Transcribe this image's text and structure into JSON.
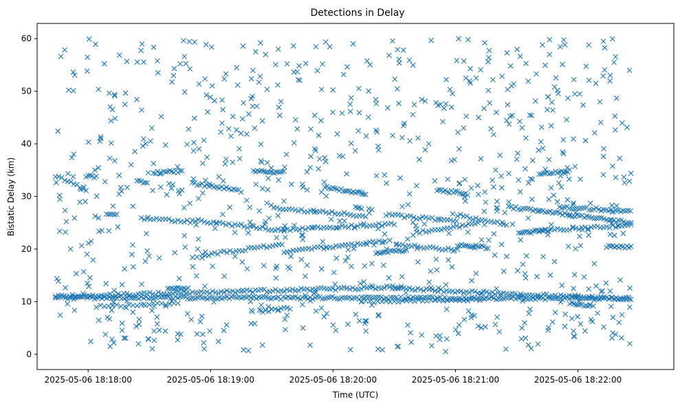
{
  "chart_data": {
    "type": "scatter",
    "title": "Detections in Delay",
    "xlabel": "Time (UTC)",
    "ylabel": "Bistatic Delay (km)",
    "x_is_time": true,
    "x_start": "2025-05-06 18:17:44",
    "xlim": [
      "2025-05-06 18:17:35",
      "2025-05-06 18:22:47"
    ],
    "ylim": [
      -2.9,
      62.9
    ],
    "x_ticks": [
      "2025-05-06 18:18:00",
      "2025-05-06 18:19:00",
      "2025-05-06 18:20:00",
      "2025-05-06 18:21:00",
      "2025-05-06 18:22:00"
    ],
    "y_ticks": [
      0,
      10,
      20,
      30,
      40,
      50,
      60
    ],
    "marker": "x",
    "color": "#1f77b4",
    "grid": false,
    "series": [
      {
        "name": "",
        "marker": "x",
        "color": "#1f77b4",
        "tracks": [
          {
            "t_start": 0,
            "t_end": 282,
            "y_start": 10.8,
            "y_end": 10.6,
            "step": 1.2
          },
          {
            "t_start": 0,
            "t_end": 170,
            "y_start": 11.0,
            "y_end": 12.8,
            "step": 1.4
          },
          {
            "t_start": 165,
            "t_end": 282,
            "y_start": 12.5,
            "y_end": 10.5,
            "step": 1.4
          },
          {
            "t_start": 55,
            "t_end": 65,
            "y_start": 12.6,
            "y_end": 12.4,
            "step": 1.0
          },
          {
            "t_start": 20,
            "t_end": 60,
            "y_start": 9.1,
            "y_end": 9.7,
            "step": 2.0
          },
          {
            "t_start": 100,
            "t_end": 115,
            "y_start": 8.2,
            "y_end": 8.8,
            "step": 1.5
          },
          {
            "t_start": 150,
            "t_end": 210,
            "y_start": 10.0,
            "y_end": 10.4,
            "step": 2.0
          },
          {
            "t_start": 0,
            "t_end": 15,
            "y_start": 33.9,
            "y_end": 31.2,
            "step": 1.5
          },
          {
            "t_start": 15,
            "t_end": 20,
            "y_start": 33.8,
            "y_end": 33.7,
            "step": 1.0
          },
          {
            "t_start": 25,
            "t_end": 30,
            "y_start": 26.8,
            "y_end": 26.5,
            "step": 1.0
          },
          {
            "t_start": 40,
            "t_end": 45,
            "y_start": 33.2,
            "y_end": 32.5,
            "step": 1.0
          },
          {
            "t_start": 48,
            "t_end": 62,
            "y_start": 34.5,
            "y_end": 34.8,
            "step": 1.0
          },
          {
            "t_start": 42,
            "t_end": 67,
            "y_start": 25.8,
            "y_end": 25.2,
            "step": 1.5
          },
          {
            "t_start": 67,
            "t_end": 92,
            "y_start": 32.5,
            "y_end": 31.0,
            "step": 1.2
          },
          {
            "t_start": 67,
            "t_end": 112,
            "y_start": 25.5,
            "y_end": 23.5,
            "step": 1.5
          },
          {
            "t_start": 72,
            "t_end": 112,
            "y_start": 18.8,
            "y_end": 21.0,
            "step": 1.5
          },
          {
            "t_start": 97,
            "t_end": 112,
            "y_start": 34.8,
            "y_end": 34.6,
            "step": 1.0
          },
          {
            "t_start": 107,
            "t_end": 152,
            "y_start": 27.8,
            "y_end": 26.3,
            "step": 1.5
          },
          {
            "t_start": 112,
            "t_end": 162,
            "y_start": 19.5,
            "y_end": 21.5,
            "step": 1.5
          },
          {
            "t_start": 112,
            "t_end": 167,
            "y_start": 23.6,
            "y_end": 24.8,
            "step": 1.5
          },
          {
            "t_start": 132,
            "t_end": 152,
            "y_start": 31.8,
            "y_end": 30.5,
            "step": 1.0
          },
          {
            "t_start": 147,
            "t_end": 150,
            "y_start": 27.8,
            "y_end": 27.6,
            "step": 1.0
          },
          {
            "t_start": 157,
            "t_end": 172,
            "y_start": 19.3,
            "y_end": 19.7,
            "step": 1.0
          },
          {
            "t_start": 162,
            "t_end": 197,
            "y_start": 26.5,
            "y_end": 25.3,
            "step": 1.5
          },
          {
            "t_start": 167,
            "t_end": 197,
            "y_start": 20.8,
            "y_end": 19.8,
            "step": 1.5
          },
          {
            "t_start": 177,
            "t_end": 207,
            "y_start": 23.2,
            "y_end": 24.8,
            "step": 1.5
          },
          {
            "t_start": 187,
            "t_end": 202,
            "y_start": 31.2,
            "y_end": 30.5,
            "step": 1.0
          },
          {
            "t_start": 197,
            "t_end": 222,
            "y_start": 26.5,
            "y_end": 24.5,
            "step": 1.5
          },
          {
            "t_start": 197,
            "t_end": 212,
            "y_start": 20.8,
            "y_end": 20.3,
            "step": 1.0
          },
          {
            "t_start": 222,
            "t_end": 252,
            "y_start": 28.0,
            "y_end": 26.5,
            "step": 1.2
          },
          {
            "t_start": 227,
            "t_end": 242,
            "y_start": 23.0,
            "y_end": 23.6,
            "step": 1.0
          },
          {
            "t_start": 237,
            "t_end": 252,
            "y_start": 34.3,
            "y_end": 34.9,
            "step": 1.0
          },
          {
            "t_start": 247,
            "t_end": 282,
            "y_start": 28.0,
            "y_end": 27.2,
            "step": 1.2
          },
          {
            "t_start": 252,
            "t_end": 282,
            "y_start": 26.5,
            "y_end": 25.0,
            "step": 1.2
          },
          {
            "t_start": 237,
            "t_end": 282,
            "y_start": 23.5,
            "y_end": 24.5,
            "step": 1.5
          },
          {
            "t_start": 270,
            "t_end": 282,
            "y_start": 20.5,
            "y_end": 20.3,
            "step": 1.0
          },
          {
            "t_start": 252,
            "t_end": 262,
            "y_start": 9.6,
            "y_end": 9.3,
            "step": 1.0
          }
        ],
        "scatter": {
          "count": 850,
          "t_range": [
            0,
            282
          ],
          "y_range": [
            0.5,
            60
          ]
        }
      }
    ]
  }
}
